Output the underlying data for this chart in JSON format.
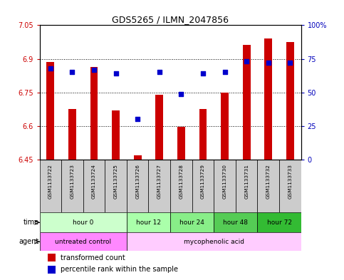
{
  "title": "GDS5265 / ILMN_2047856",
  "samples": [
    "GSM1133722",
    "GSM1133723",
    "GSM1133724",
    "GSM1133725",
    "GSM1133726",
    "GSM1133727",
    "GSM1133728",
    "GSM1133729",
    "GSM1133730",
    "GSM1133731",
    "GSM1133732",
    "GSM1133733"
  ],
  "bar_values": [
    6.885,
    6.675,
    6.863,
    6.67,
    6.468,
    6.74,
    6.595,
    6.675,
    6.75,
    6.963,
    6.99,
    6.975
  ],
  "blue_percentiles": [
    68,
    65,
    67,
    64,
    30,
    65,
    49,
    64,
    65,
    73,
    72,
    72
  ],
  "ymin": 6.45,
  "ymax": 7.05,
  "yticks": [
    6.45,
    6.6,
    6.75,
    6.9,
    7.05
  ],
  "ytick_labels": [
    "6.45",
    "6.6",
    "6.75",
    "6.9",
    "7.05"
  ],
  "right_yticks": [
    0,
    25,
    50,
    75,
    100
  ],
  "right_ytick_labels": [
    "0",
    "25",
    "50",
    "75",
    "100%"
  ],
  "bar_color": "#cc0000",
  "blue_color": "#0000cc",
  "time_groups": [
    {
      "label": "hour 0",
      "start": 0,
      "end": 4
    },
    {
      "label": "hour 12",
      "start": 4,
      "end": 6
    },
    {
      "label": "hour 24",
      "start": 6,
      "end": 8
    },
    {
      "label": "hour 48",
      "start": 8,
      "end": 10
    },
    {
      "label": "hour 72",
      "start": 10,
      "end": 12
    }
  ],
  "time_colors": [
    "#ccffcc",
    "#aaffaa",
    "#88ee88",
    "#55cc55",
    "#33bb33"
  ],
  "agent_groups": [
    {
      "label": "untreated control",
      "start": 0,
      "end": 4
    },
    {
      "label": "mycophenolic acid",
      "start": 4,
      "end": 12
    }
  ],
  "agent_colors": [
    "#ff88ff",
    "#ffccff"
  ],
  "legend_items": [
    {
      "label": "transformed count",
      "color": "#cc0000",
      "marker": "square"
    },
    {
      "label": "percentile rank within the sample",
      "color": "#0000cc",
      "marker": "square"
    }
  ],
  "bg_color": "#ffffff",
  "tick_color_left": "#cc0000",
  "tick_color_right": "#0000bb",
  "sample_bg": "#cccccc",
  "bar_width": 0.35
}
